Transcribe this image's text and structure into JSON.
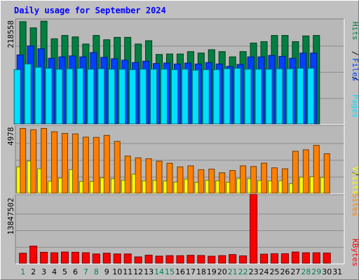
{
  "title": "Daily usage for September 2024",
  "colors": {
    "pages": "#00e0ff",
    "files": "#0040ff",
    "hits": "#008040",
    "visits": "#ffff00",
    "sites": "#ff8000",
    "kbytes": "#ff0000",
    "weekend_label": "#00805c",
    "weekday_label": "#000000"
  },
  "legend": {
    "pages": "Pages",
    "files": "Files",
    "hits": "Hits",
    "visits": "Visits",
    "sites": "Sites",
    "kbytes": "KBytes",
    "sep": "/"
  },
  "chart_data": [
    {
      "type": "bar",
      "name": "hits-files-pages",
      "categories": [
        "1",
        "2",
        "3",
        "4",
        "5",
        "6",
        "7",
        "8",
        "9",
        "10",
        "11",
        "12",
        "13",
        "14",
        "15",
        "16",
        "17",
        "18",
        "19",
        "20",
        "21",
        "22",
        "23",
        "24",
        "25",
        "26",
        "27",
        "28",
        "29",
        "30",
        "31"
      ],
      "ymax_label": "218558",
      "ylim": [
        0,
        218558
      ],
      "series": [
        {
          "name": "Hits",
          "values": [
            215000,
            202000,
            216000,
            179000,
            186000,
            183000,
            168000,
            186000,
            177000,
            182000,
            182000,
            168000,
            175000,
            146000,
            147000,
            147000,
            152000,
            149000,
            156000,
            152000,
            141000,
            152000,
            170000,
            173000,
            186000,
            186000,
            173000,
            185000,
            186000,
            0,
            0
          ]
        },
        {
          "name": "Files",
          "values": [
            145000,
            164000,
            158000,
            138000,
            141000,
            143000,
            141000,
            150000,
            140000,
            137000,
            134000,
            129000,
            132000,
            127000,
            128000,
            126000,
            128000,
            126000,
            129000,
            126000,
            121000,
            125000,
            141000,
            141000,
            144000,
            142000,
            138000,
            149000,
            149000,
            0,
            0
          ]
        },
        {
          "name": "Pages",
          "values": [
            114000,
            126000,
            119000,
            117000,
            115000,
            116000,
            117000,
            115000,
            116000,
            115000,
            115000,
            114000,
            115000,
            115000,
            115000,
            114000,
            115000,
            113000,
            114000,
            114000,
            116000,
            117000,
            115000,
            115000,
            115000,
            116000,
            116000,
            117000,
            117000,
            0,
            0
          ]
        }
      ]
    },
    {
      "type": "bar",
      "name": "sites-visits",
      "categories": [
        "1",
        "2",
        "3",
        "4",
        "5",
        "6",
        "7",
        "8",
        "9",
        "10",
        "11",
        "12",
        "13",
        "14",
        "15",
        "16",
        "17",
        "18",
        "19",
        "20",
        "21",
        "22",
        "23",
        "24",
        "25",
        "26",
        "27",
        "28",
        "29",
        "30",
        "31"
      ],
      "ymax_label": "4978",
      "ylim": [
        0,
        4978
      ],
      "series": [
        {
          "name": "Sites",
          "values": [
            4850,
            4750,
            4850,
            4600,
            4480,
            4440,
            4200,
            4180,
            4330,
            3880,
            2780,
            2650,
            2580,
            2400,
            2240,
            1970,
            2050,
            1760,
            1800,
            1530,
            1700,
            2050,
            2000,
            2250,
            1900,
            1830,
            3140,
            3250,
            3580,
            2960,
            0
          ]
        },
        {
          "name": "Visits",
          "values": [
            1970,
            2410,
            1830,
            890,
            1130,
            1770,
            880,
            880,
            1150,
            1080,
            960,
            1420,
            930,
            970,
            920,
            830,
            1050,
            810,
            960,
            930,
            820,
            1100,
            1080,
            950,
            920,
            940,
            710,
            1200,
            1230,
            1190,
            0
          ]
        }
      ]
    },
    {
      "type": "bar",
      "name": "kbytes",
      "categories": [
        "1",
        "2",
        "3",
        "4",
        "5",
        "6",
        "7",
        "8",
        "9",
        "10",
        "11",
        "12",
        "13",
        "14",
        "15",
        "16",
        "17",
        "18",
        "19",
        "20",
        "21",
        "22",
        "23",
        "24",
        "25",
        "26",
        "27",
        "28",
        "29",
        "30",
        "31"
      ],
      "ymax_label": "13847502",
      "ylim": [
        0,
        13847502
      ],
      "series": [
        {
          "name": "KBytes",
          "values": [
            2100000,
            3600000,
            2300000,
            2200000,
            2350000,
            2300000,
            2200000,
            1950000,
            2100000,
            1950000,
            1950000,
            1330000,
            1700000,
            1490000,
            1590000,
            1580000,
            1660000,
            1620000,
            1470000,
            1600000,
            1820000,
            1550000,
            14470000,
            1900000,
            2000000,
            2000000,
            2350000,
            2200000,
            2200000,
            2150000,
            0
          ]
        }
      ]
    }
  ]
}
